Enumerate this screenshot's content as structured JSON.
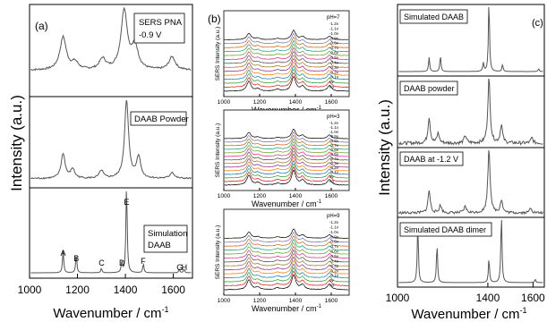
{
  "figure": {
    "panel_a": {
      "tag": "(a)",
      "ylabel": "Intensity (a.u.)",
      "xlabel": "Wavenumber / cm",
      "xlabel_sup": "-1",
      "xticks": [
        "1000",
        "1200",
        "1400",
        "1600"
      ],
      "boxes": [
        "SERS PNA\n-0.9 V",
        "DAAB Powder",
        "Simulation\nDAAB"
      ],
      "peak_letters": [
        "A",
        "B",
        "C",
        "D",
        "E",
        "F",
        "G",
        "H"
      ]
    },
    "panel_b": {
      "tag": "(b)",
      "ylabel": "SERS Intensity (a.u.)",
      "xlabel": "Wavenumber / cm",
      "xlabel_sup": "-1",
      "xticks": [
        "1000",
        "1200",
        "1400",
        "1600"
      ],
      "subplot_titles": [
        "pH=7",
        "pH=3",
        "pH=9"
      ],
      "legend_labels": [
        "-1.2v",
        "-1.1v",
        "-1.0v",
        "-0.9v",
        "-0.8v",
        "-0.7v",
        "-0.6v",
        "-0.5v",
        "-0.4v",
        "-0.3v",
        "-0.2v",
        "-0.1v",
        "0v",
        "no"
      ]
    },
    "panel_c": {
      "tag": "(c)",
      "ylabel": "Intensity (a.u.)",
      "xlabel": "Wavenumber / cm",
      "xlabel_sup": "-1",
      "xticks": [
        "1000",
        "1400",
        "1600"
      ],
      "boxes": [
        "Simulated DAAB",
        "DAAB powder",
        "DAAB at -1.2 V",
        "Simulated DAAB dimer"
      ]
    },
    "colors": {
      "curve": "#555555",
      "legend_series": [
        "#000000",
        "#e31a1c",
        "#33a02c",
        "#1f78b4",
        "#ff7f00",
        "#8c2d8c",
        "#a6761d",
        "#4d4d4d",
        "#e7298a",
        "#66a61e",
        "#1b9e77",
        "#d95f02",
        "#7570b3",
        "#000000"
      ]
    }
  },
  "chart_data": [
    {
      "type": "line",
      "panel": "a",
      "xlabel": "Wavenumber / cm-1",
      "ylabel": "Intensity (a.u.)",
      "xlim": [
        1000,
        1680
      ],
      "series": [
        {
          "name": "SERS PNA -0.9 V",
          "peaks": [
            [
              1140,
              0.55
            ],
            [
              1190,
              0.12
            ],
            [
              1305,
              0.18
            ],
            [
              1395,
              1.0
            ],
            [
              1440,
              0.38
            ],
            [
              1595,
              0.22
            ]
          ]
        },
        {
          "name": "DAAB Powder",
          "peaks": [
            [
              1140,
              0.32
            ],
            [
              1180,
              0.12
            ],
            [
              1300,
              0.1
            ],
            [
              1405,
              1.0
            ],
            [
              1455,
              0.28
            ],
            [
              1595,
              0.08
            ]
          ]
        },
        {
          "name": "Simulation DAAB",
          "peaks": [
            [
              1140,
              0.25
            ],
            [
              1195,
              0.2
            ],
            [
              1300,
              0.05
            ],
            [
              1385,
              0.12
            ],
            [
              1405,
              1.0
            ],
            [
              1475,
              0.1
            ],
            [
              1625,
              0.04
            ],
            [
              1645,
              0.04
            ]
          ]
        }
      ],
      "peak_positions": {
        "A": 1140,
        "B": 1195,
        "C": 1300,
        "D": 1385,
        "E": 1405,
        "F": 1475,
        "G": 1625,
        "H": 1645
      }
    },
    {
      "type": "line",
      "panel": "b",
      "xlabel": "Wavenumber / cm-1",
      "ylabel": "SERS Intensity (a.u.)",
      "xlim": [
        1000,
        1700
      ],
      "subplots": [
        "pH=7",
        "pH=3",
        "pH=9"
      ],
      "series_per_subplot": 14,
      "peaks": [
        [
          1140,
          0.6
        ],
        [
          1190,
          0.15
        ],
        [
          1300,
          0.12
        ],
        [
          1390,
          0.9
        ],
        [
          1440,
          0.3
        ],
        [
          1590,
          0.35
        ]
      ]
    },
    {
      "type": "line",
      "panel": "c",
      "xlabel": "Wavenumber / cm-1",
      "ylabel": "Intensity (a.u.)",
      "xlim": [
        1000,
        1650
      ],
      "series": [
        {
          "name": "Simulated DAAB",
          "peaks": [
            [
              1140,
              0.2
            ],
            [
              1190,
              0.22
            ],
            [
              1380,
              0.12
            ],
            [
              1405,
              1.0
            ],
            [
              1465,
              0.1
            ],
            [
              1625,
              0.04
            ]
          ]
        },
        {
          "name": "DAAB powder",
          "peaks": [
            [
              1140,
              0.4
            ],
            [
              1180,
              0.15
            ],
            [
              1300,
              0.12
            ],
            [
              1405,
              1.0
            ],
            [
              1460,
              0.28
            ],
            [
              1595,
              0.08
            ]
          ]
        },
        {
          "name": "DAAB at -1.2 V",
          "peaks": [
            [
              1140,
              0.35
            ],
            [
              1190,
              0.12
            ],
            [
              1300,
              0.1
            ],
            [
              1405,
              1.0
            ],
            [
              1460,
              0.2
            ],
            [
              1590,
              0.08
            ]
          ]
        },
        {
          "name": "Simulated DAAB dimer",
          "peaks": [
            [
              1090,
              0.85
            ],
            [
              1175,
              0.55
            ],
            [
              1405,
              0.35
            ],
            [
              1460,
              1.0
            ],
            [
              1610,
              0.05
            ]
          ]
        }
      ]
    }
  ]
}
